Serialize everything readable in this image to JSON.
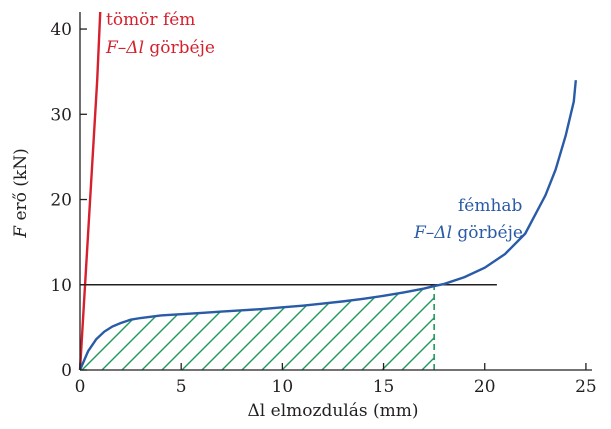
{
  "chart_data": {
    "type": "line",
    "title": "",
    "xlabel": {
      "symbol": "Δl",
      "text": " elmozdulás (mm)"
    },
    "ylabel": {
      "symbol": "F",
      "text": " erő (kN)"
    },
    "xlim": [
      0,
      25.3
    ],
    "ylim": [
      0,
      42
    ],
    "xticks": [
      "0",
      "5",
      "10",
      "15",
      "20",
      "25"
    ],
    "yticks": [
      "0",
      "10",
      "20",
      "30",
      "40"
    ],
    "grid": false,
    "series": [
      {
        "name_line1": "tömör fém",
        "name_line2_symbol": "F–Δl",
        "name_line2_text": " görbéje",
        "color": "#d6202e",
        "x": [
          0,
          0.35,
          0.6,
          0.85,
          1.0
        ],
        "y": [
          0,
          14,
          24,
          34,
          42
        ]
      },
      {
        "name_line1": "fémhab",
        "name_line2_symbol": "F–Δl",
        "name_line2_text": " görbéje",
        "color": "#2a5ba6",
        "x": [
          0,
          0.4,
          0.8,
          1.2,
          1.6,
          2.0,
          2.5,
          3.0,
          4.0,
          5.0,
          6.0,
          7.0,
          8.0,
          9.0,
          10.0,
          11.0,
          12.0,
          13.0,
          14.0,
          15.0,
          16.0,
          17.0,
          17.5,
          18.0,
          19.0,
          20.0,
          21.0,
          22.0,
          23.0,
          23.5,
          24.0,
          24.2,
          24.4,
          24.5
        ],
        "y": [
          0,
          2.2,
          3.6,
          4.5,
          5.1,
          5.5,
          5.9,
          6.1,
          6.4,
          6.55,
          6.7,
          6.85,
          7.0,
          7.15,
          7.35,
          7.55,
          7.8,
          8.05,
          8.35,
          8.7,
          9.1,
          9.55,
          9.85,
          10.1,
          10.9,
          12.0,
          13.6,
          16.0,
          20.5,
          23.5,
          27.5,
          29.5,
          31.5,
          34.0
        ]
      }
    ],
    "reference_line": {
      "y": 10,
      "x_start": 0,
      "x_end": 20.6,
      "color": "#231f20"
    },
    "hatched_area": {
      "x_end": 17.5,
      "color": "#1e9a5a",
      "label": ""
    }
  }
}
